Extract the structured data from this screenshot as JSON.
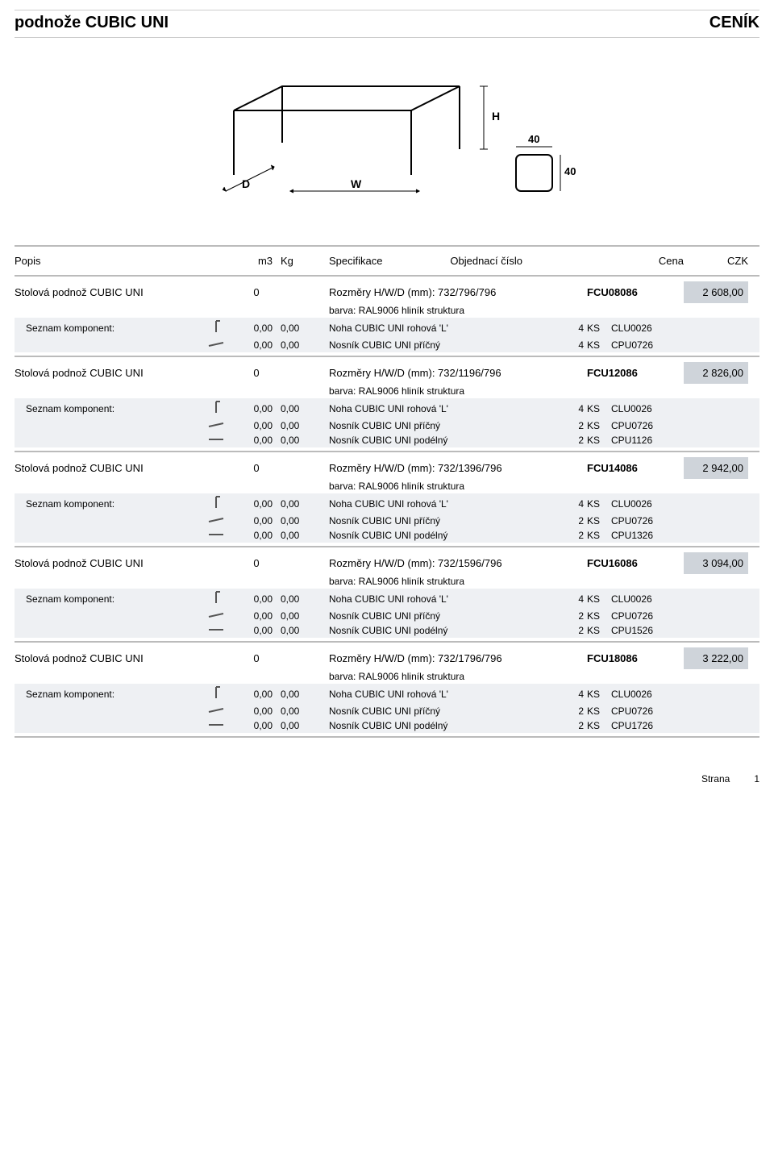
{
  "header": {
    "title": "podnože CUBIC UNI",
    "subtitle": "CENÍK"
  },
  "columns": {
    "popis": "Popis",
    "m3": "m3",
    "kg": "Kg",
    "spec": "Specifikace",
    "obj": "Objednací číslo",
    "cena": "Cena",
    "czk": "CZK"
  },
  "diagram": {
    "label_D": "D",
    "label_W": "W",
    "label_H": "H",
    "label_40a": "40",
    "label_40b": "40"
  },
  "koment_label": "Seznam komponent:",
  "color_text": "barva: RAL9006 hliník struktura",
  "products": [
    {
      "name": "Stolová podnož CUBIC UNI",
      "m3": "0",
      "spec": "Rozměry H/W/D (mm): 732/796/796",
      "order": "FCU08086",
      "price": "2 608,00",
      "components": [
        {
          "icon": "leg",
          "v1": "0,00",
          "v2": "0,00",
          "desc": "Noha CUBIC UNI rohová 'L'",
          "qty": "4",
          "unit": "KS",
          "code": "CLU0026"
        },
        {
          "icon": "bar-h",
          "v1": "0,00",
          "v2": "0,00",
          "desc": "Nosník CUBIC UNI příčný",
          "qty": "4",
          "unit": "KS",
          "code": "CPU0726"
        }
      ]
    },
    {
      "name": "Stolová podnož CUBIC UNI",
      "m3": "0",
      "spec": "Rozměry H/W/D (mm): 732/1196/796",
      "order": "FCU12086",
      "price": "2 826,00",
      "components": [
        {
          "icon": "leg",
          "v1": "0,00",
          "v2": "0,00",
          "desc": "Noha CUBIC UNI rohová 'L'",
          "qty": "4",
          "unit": "KS",
          "code": "CLU0026"
        },
        {
          "icon": "bar-h",
          "v1": "0,00",
          "v2": "0,00",
          "desc": "Nosník CUBIC UNI příčný",
          "qty": "2",
          "unit": "KS",
          "code": "CPU0726"
        },
        {
          "icon": "bar-d",
          "v1": "0,00",
          "v2": "0,00",
          "desc": "Nosník CUBIC UNI podélný",
          "qty": "2",
          "unit": "KS",
          "code": "CPU1126"
        }
      ]
    },
    {
      "name": "Stolová podnož CUBIC UNI",
      "m3": "0",
      "spec": "Rozměry H/W/D (mm): 732/1396/796",
      "order": "FCU14086",
      "price": "2 942,00",
      "components": [
        {
          "icon": "leg",
          "v1": "0,00",
          "v2": "0,00",
          "desc": "Noha CUBIC UNI rohová 'L'",
          "qty": "4",
          "unit": "KS",
          "code": "CLU0026"
        },
        {
          "icon": "bar-h",
          "v1": "0,00",
          "v2": "0,00",
          "desc": "Nosník CUBIC UNI příčný",
          "qty": "2",
          "unit": "KS",
          "code": "CPU0726"
        },
        {
          "icon": "bar-d",
          "v1": "0,00",
          "v2": "0,00",
          "desc": "Nosník CUBIC UNI podélný",
          "qty": "2",
          "unit": "KS",
          "code": "CPU1326"
        }
      ]
    },
    {
      "name": "Stolová podnož CUBIC UNI",
      "m3": "0",
      "spec": "Rozměry H/W/D (mm): 732/1596/796",
      "order": "FCU16086",
      "price": "3 094,00",
      "components": [
        {
          "icon": "leg",
          "v1": "0,00",
          "v2": "0,00",
          "desc": "Noha CUBIC UNI rohová 'L'",
          "qty": "4",
          "unit": "KS",
          "code": "CLU0026"
        },
        {
          "icon": "bar-h",
          "v1": "0,00",
          "v2": "0,00",
          "desc": "Nosník CUBIC UNI příčný",
          "qty": "2",
          "unit": "KS",
          "code": "CPU0726"
        },
        {
          "icon": "bar-d",
          "v1": "0,00",
          "v2": "0,00",
          "desc": "Nosník CUBIC UNI podélný",
          "qty": "2",
          "unit": "KS",
          "code": "CPU1526"
        }
      ]
    },
    {
      "name": "Stolová podnož CUBIC UNI",
      "m3": "0",
      "spec": "Rozměry H/W/D (mm): 732/1796/796",
      "order": "FCU18086",
      "price": "3 222,00",
      "components": [
        {
          "icon": "leg",
          "v1": "0,00",
          "v2": "0,00",
          "desc": "Noha CUBIC UNI rohová 'L'",
          "qty": "4",
          "unit": "KS",
          "code": "CLU0026"
        },
        {
          "icon": "bar-h",
          "v1": "0,00",
          "v2": "0,00",
          "desc": "Nosník CUBIC UNI příčný",
          "qty": "2",
          "unit": "KS",
          "code": "CPU0726"
        },
        {
          "icon": "bar-d",
          "v1": "0,00",
          "v2": "0,00",
          "desc": "Nosník CUBIC UNI podélný",
          "qty": "2",
          "unit": "KS",
          "code": "CPU1726"
        }
      ]
    }
  ],
  "footer": {
    "label": "Strana",
    "page": "1"
  }
}
